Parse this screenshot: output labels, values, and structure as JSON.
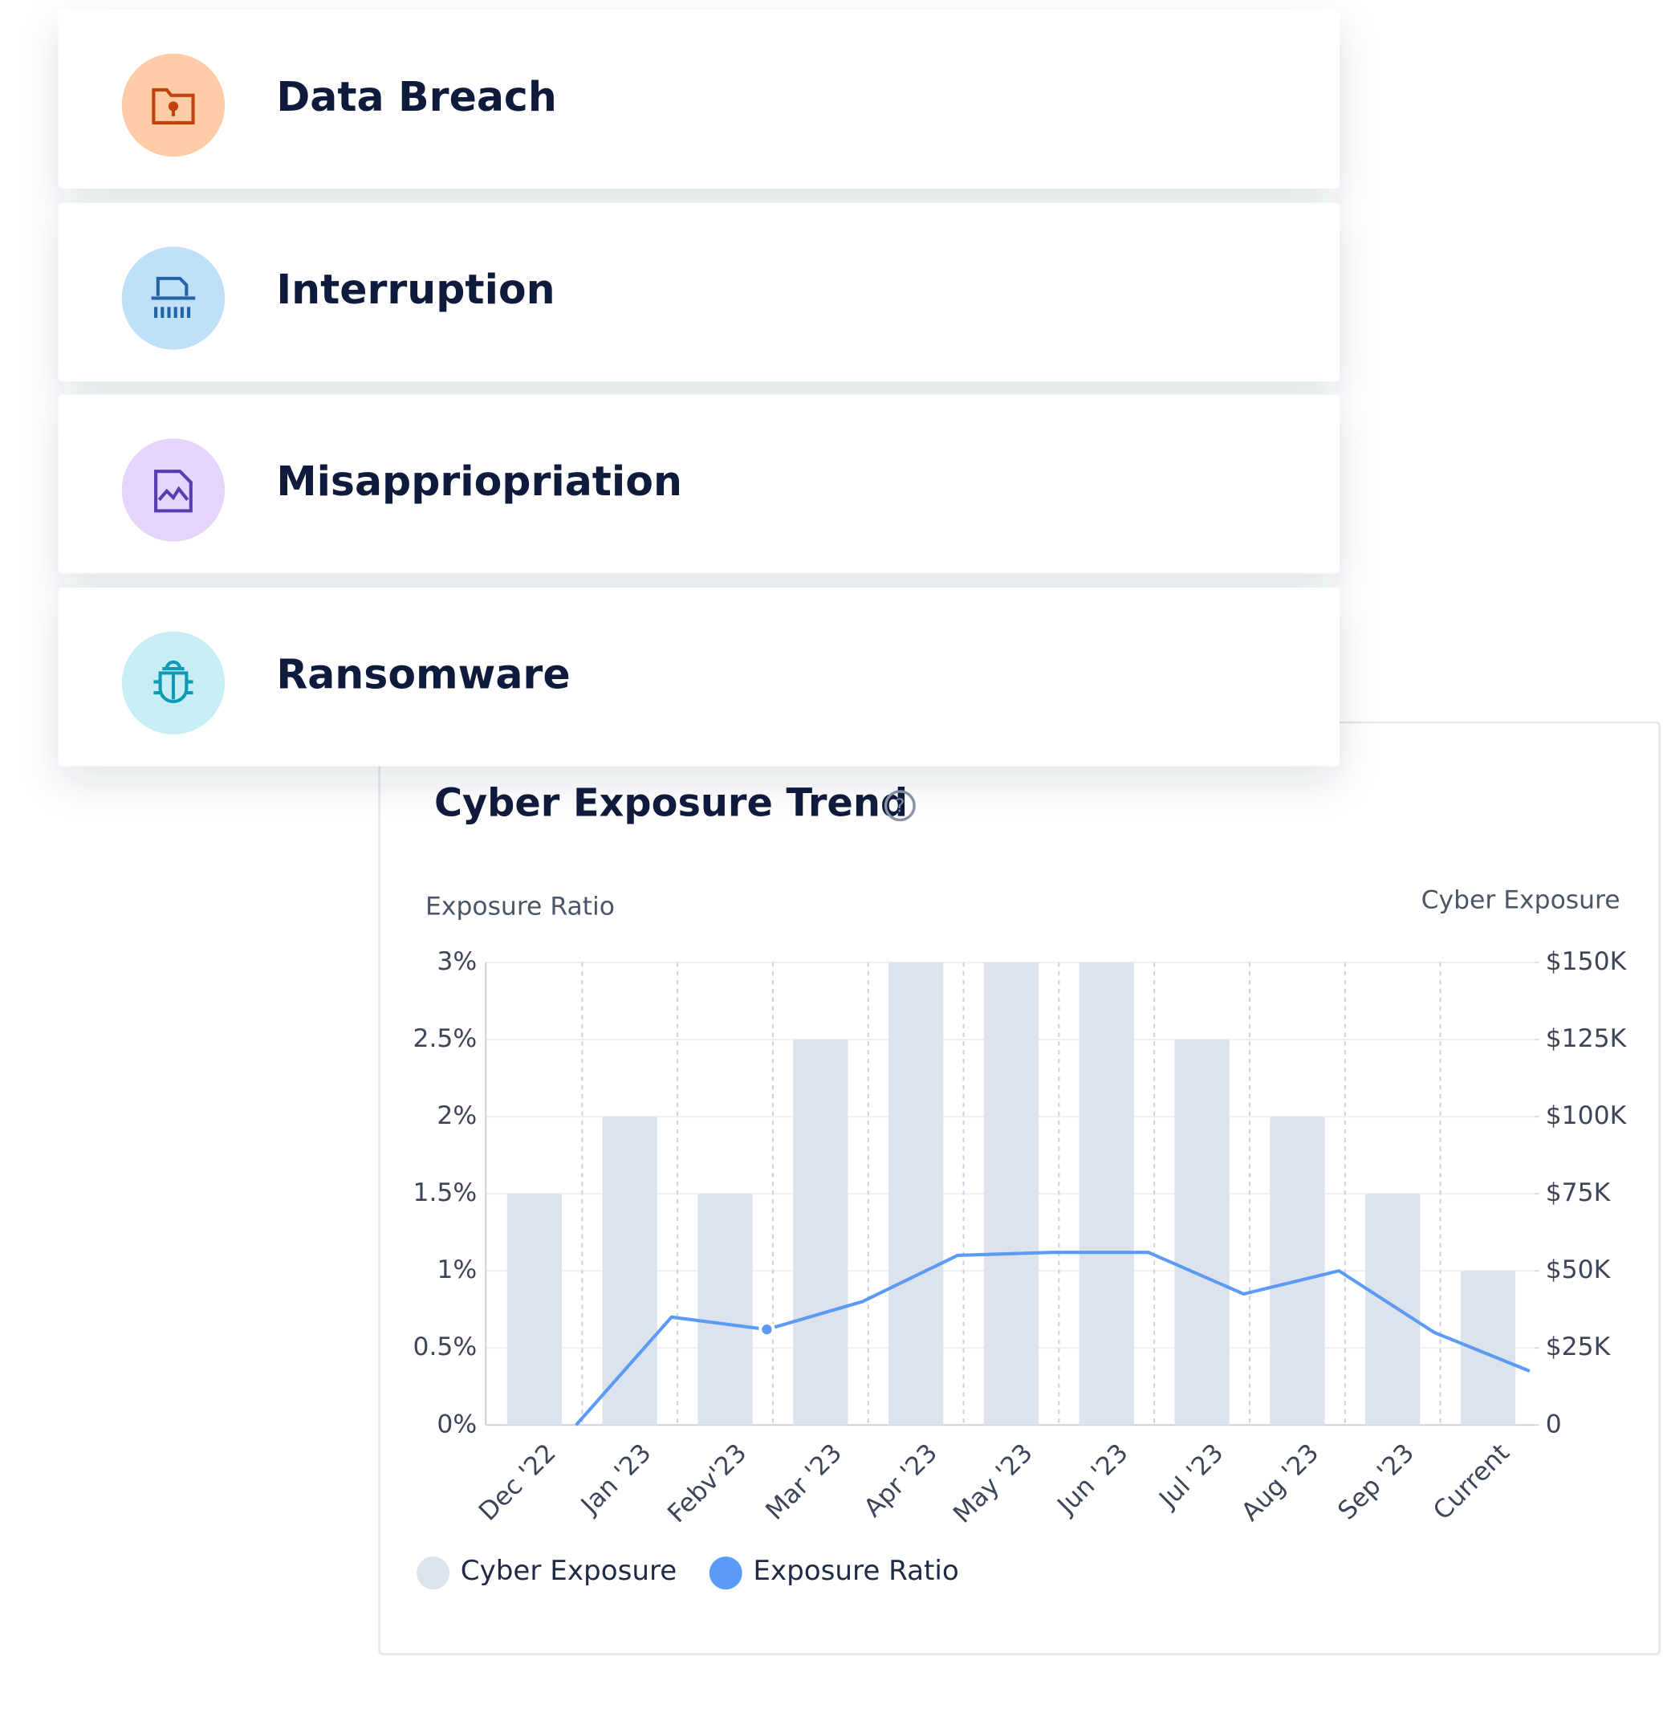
{
  "cards": [
    {
      "label": "Data Breach"
    },
    {
      "label": "Interruption"
    },
    {
      "label": "Misappriopriation"
    },
    {
      "label": "Ransomware"
    }
  ],
  "chart_data": {
    "type": "bar-line",
    "title": "Cyber Exposure Trend",
    "y_label": "Exposure Ratio",
    "y2_label": "Cyber Exposure",
    "categories": [
      "Dec '22",
      "Jan '23",
      "Febv'23",
      "Mar '23",
      "Apr '23",
      "May '23",
      "Jun '23",
      "Jul '23",
      "Aug '23",
      "Sep '23",
      "Current"
    ],
    "series": [
      {
        "name": "Cyber Exposure",
        "type": "bar",
        "axis": "y2",
        "color": "#dde3ec",
        "values": [
          75000,
          100000,
          75000,
          125000,
          150000,
          150000,
          150000,
          125000,
          100000,
          75000,
          50000
        ]
      },
      {
        "name": "Exposure Ratio",
        "type": "line",
        "color": "#5b9af5",
        "values": [
          0,
          0.7,
          0.62,
          0.8,
          1.1,
          1.12,
          1.12,
          0.85,
          1.0,
          0.6,
          0.35
        ]
      }
    ],
    "ylim": [
      0,
      3
    ],
    "yticks": [
      {
        "value": 0,
        "label": "0%"
      },
      {
        "value": 0.5,
        "label": "0.5%"
      },
      {
        "value": 1,
        "label": "1%"
      },
      {
        "value": 1.5,
        "label": "1.5%"
      },
      {
        "value": 2,
        "label": "2%"
      },
      {
        "value": 2.5,
        "label": "2.5%"
      },
      {
        "value": 3,
        "label": "3%"
      }
    ],
    "y2lim": [
      0,
      150000
    ],
    "y2ticks": [
      0,
      {
        "value": 25000,
        "label": "$25K"
      },
      {
        "value": 50000,
        "label": "$50K"
      },
      {
        "value": 75000,
        "label": "$75K"
      },
      {
        "value": 100000,
        "label": "$100K"
      },
      {
        "value": 125000,
        "label": "$125K"
      },
      {
        "value": 150000,
        "label": "$150K"
      }
    ],
    "grid": true
  }
}
